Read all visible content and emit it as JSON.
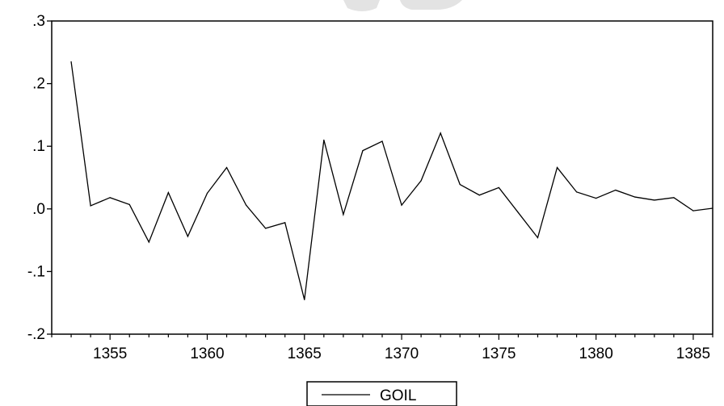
{
  "chart_data": {
    "type": "line",
    "title": "",
    "xlabel": "",
    "ylabel": "",
    "xlim": [
      1352,
      1386
    ],
    "ylim": [
      -0.2,
      0.3
    ],
    "yticks": [
      0.3,
      0.2,
      0.1,
      0.0,
      -0.1,
      -0.2
    ],
    "ytick_labels": [
      ".3",
      ".2",
      ".1",
      ".0",
      "-.1",
      "-.2"
    ],
    "xticks": [
      1355,
      1360,
      1365,
      1370,
      1375,
      1380,
      1385
    ],
    "xtick_labels": [
      "1355",
      "1360",
      "1365",
      "1370",
      "1375",
      "1380",
      "1385"
    ],
    "grid": false,
    "legend_position": "bottom-center",
    "series": [
      {
        "name": "GOIL",
        "color": "#000000",
        "x": [
          1353,
          1354,
          1355,
          1356,
          1357,
          1358,
          1359,
          1360,
          1361,
          1362,
          1363,
          1364,
          1365,
          1366,
          1367,
          1368,
          1369,
          1370,
          1371,
          1372,
          1373,
          1374,
          1375,
          1376,
          1377,
          1378,
          1379,
          1380,
          1381,
          1382,
          1383,
          1384,
          1385,
          1386
        ],
        "values": [
          0.235,
          0.005,
          0.018,
          0.007,
          -0.053,
          0.026,
          -0.044,
          0.025,
          0.066,
          0.006,
          -0.031,
          -0.022,
          -0.145,
          0.11,
          -0.009,
          0.093,
          0.108,
          0.006,
          0.045,
          0.121,
          0.039,
          0.022,
          0.034,
          -0.006,
          -0.046,
          0.066,
          0.027,
          0.017,
          0.03,
          0.019,
          0.014,
          0.018,
          -0.003,
          0.001
        ]
      }
    ]
  }
}
